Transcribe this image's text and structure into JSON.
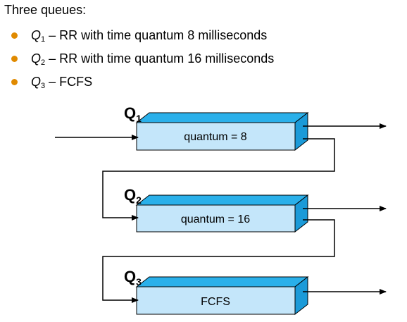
{
  "heading": "Three queues:",
  "bullet_color": "#e08a00",
  "bullets": [
    {
      "queue": "Q",
      "sub": "1",
      "text": " – RR with time quantum 8 milliseconds"
    },
    {
      "queue": "Q",
      "sub": "2",
      "text": " – RR with time quantum 16 milliseconds"
    },
    {
      "queue": "Q",
      "sub": "3",
      "text": " – FCFS"
    }
  ],
  "diagram": {
    "queues": [
      {
        "label": "Q",
        "sub": "1",
        "box_text": "quantum = 8"
      },
      {
        "label": "Q",
        "sub": "2",
        "box_text": "quantum = 16"
      },
      {
        "label": "Q",
        "sub": "3",
        "box_text": "FCFS"
      }
    ],
    "colors": {
      "front": "#c4e6fa",
      "top": "#2ab0ea",
      "side": "#1b9ad8",
      "outline": "#000000"
    }
  }
}
